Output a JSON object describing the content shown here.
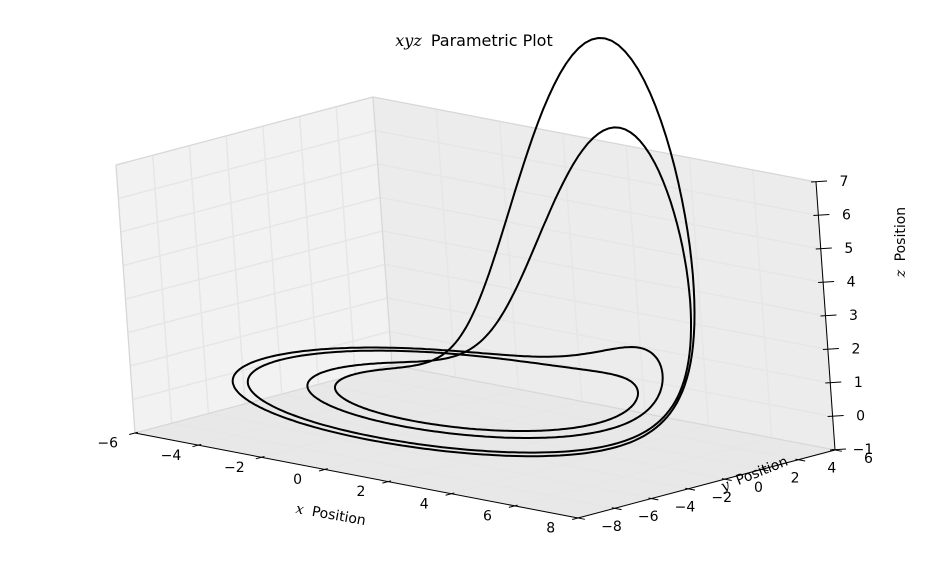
{
  "chart_data": {
    "type": "line-3d",
    "title_math": "xyz",
    "title_text": "Parametric Plot",
    "xlabel_math": "x",
    "xlabel_text": "Position",
    "ylabel_math": "y",
    "ylabel_text": "Position",
    "zlabel_math": "z",
    "zlabel_text": "Position",
    "xlim": [
      -6,
      8
    ],
    "ylim": [
      -8,
      6
    ],
    "zlim": [
      -1,
      7
    ],
    "x_ticks": [
      -6,
      -4,
      -2,
      0,
      2,
      4,
      6,
      8
    ],
    "y_ticks": [
      -8,
      -6,
      -4,
      -2,
      0,
      2,
      4,
      6
    ],
    "z_ticks": [
      -1,
      0,
      1,
      2,
      3,
      4,
      5,
      6,
      7
    ],
    "grid": true,
    "line_color": "#000000",
    "pane_color": "#f2f2f2",
    "grid_color": "#e6e6e6",
    "curve": "Rossler attractor, period-2 limit cycle (a=0.2, b=0.2, c=4)"
  }
}
